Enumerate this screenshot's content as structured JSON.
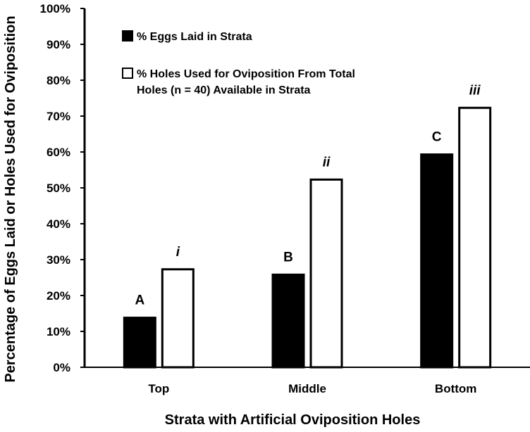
{
  "chart_data": {
    "type": "bar",
    "title": "",
    "xlabel": "Strata with Artificial Oviposition Holes",
    "ylabel": "Percentage of Eggs Laid or Holes Used for Oviposition",
    "categories": [
      "Top",
      "Middle",
      "Bottom"
    ],
    "ylim": [
      0,
      100
    ],
    "yticks": [
      "0%",
      "10%",
      "20%",
      "30%",
      "40%",
      "50%",
      "60%",
      "70%",
      "80%",
      "90%",
      "100%"
    ],
    "y_unit": "%",
    "grid": false,
    "legend_position": "top-left",
    "series": [
      {
        "name": "% Eggs Laid in Strata",
        "color": "#000000",
        "fill": "solid",
        "values": [
          14,
          26,
          59.5
        ],
        "labels": [
          "A",
          "B",
          "C"
        ],
        "label_style": "bold"
      },
      {
        "name": "% Holes Used for Oviposition From Total Holes (n = 40) Available in Strata",
        "legend_lines": [
          "% Holes Used for Oviposition From Total",
          "Holes (n = 40) Available in Strata"
        ],
        "color": "#ffffff",
        "fill": "outline",
        "values": [
          27.5,
          52.5,
          72.5
        ],
        "labels": [
          "i",
          "ii",
          "iii"
        ],
        "label_style": "bold-italic"
      }
    ]
  }
}
